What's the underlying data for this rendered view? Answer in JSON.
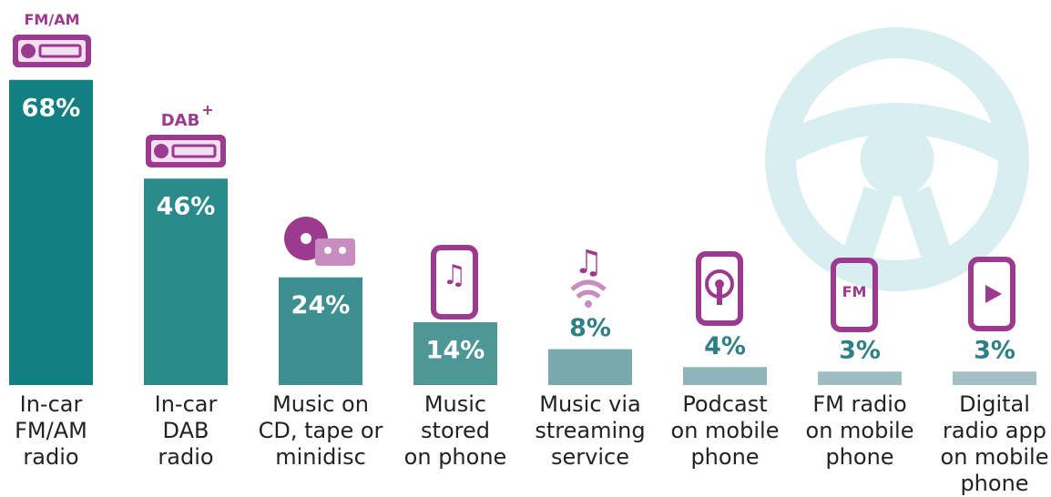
{
  "chart_data": {
    "type": "bar",
    "categories": [
      "In-car\nFM/AM\nradio",
      "In-car\nDAB\nradio",
      "Music on\nCD, tape or\nminidisc",
      "Music\nstored\non phone",
      "Music via\nstreaming\nservice",
      "Podcast\non mobile\nphone",
      "FM radio\non mobile\nphone",
      "Digital\nradio app\non mobile\nphone"
    ],
    "values": [
      68,
      46,
      24,
      14,
      8,
      4,
      3,
      3
    ],
    "value_labels": [
      "68%",
      "46%",
      "24%",
      "14%",
      "8%",
      "4%",
      "3%",
      "3%"
    ],
    "colors": [
      "#127f80",
      "#2a8a8c",
      "#3e9090",
      "#4f9797",
      "#79a9ad",
      "#8fb5ba",
      "#9fbcc2",
      "#a3bfc4"
    ],
    "annotations": [
      "FM/AM",
      "DAB",
      "+",
      "FM"
    ]
  }
}
